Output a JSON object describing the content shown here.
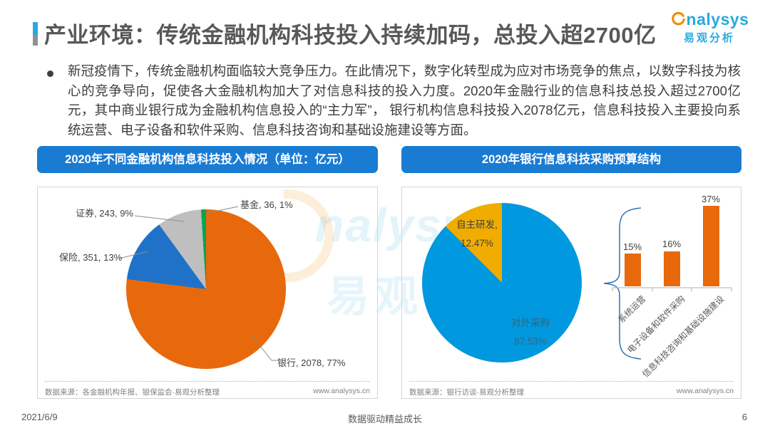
{
  "header": {
    "title": "产业环境：传统金融机构科技投入持续加码，总投入超2700亿",
    "logo_brand": "nalysys",
    "logo_subtitle": "易观分析"
  },
  "summary_bullet": "新冠疫情下，传统金融机构面临较大竞争压力。在此情况下，数字化转型成为应对市场竞争的焦点，以数字科技为核心的竞争导向，促使各大金融机构加大了对信息科技的投入力度。2020年金融行业的信息科技总投入超过2700亿元，其中商业银行成为金融机构信息投入的“主力军”， 银行机构信息科技投入2078亿元，信息科技投入主要投向系统运营、电子设备和软件采购、信息科技咨询和基础设施建设等方面。",
  "chart_data": [
    {
      "type": "pie",
      "title": "2020年不同金融机构信息科技投入情况（单位：亿元）",
      "slices": [
        {
          "label": "银行",
          "value": 2078,
          "pct": 77,
          "color": "#E8690B",
          "display": "银行, 2078, 77%"
        },
        {
          "label": "保险",
          "value": 351,
          "pct": 13,
          "color": "#1F72C8",
          "display": "保险, 351, 13%"
        },
        {
          "label": "证券",
          "value": 243,
          "pct": 9,
          "color": "#BFBFBF",
          "display": "证券, 243, 9%"
        },
        {
          "label": "基金",
          "value": 36,
          "pct": 1,
          "color": "#00A651",
          "display": "基金, 36, 1%"
        }
      ],
      "source": "数据来源：各金融机构年报、银保监会·易观分析整理",
      "website": "www.analysys.cn"
    },
    {
      "type": "pie",
      "title": "2020年银行信息科技采购预算结构",
      "slices": [
        {
          "label": "对外采购",
          "pct": 87.53,
          "color": "#0098DF",
          "display_label": "对外采购",
          "display_pct": "87.53%"
        },
        {
          "label": "自主研发",
          "pct": 12.47,
          "color": "#F0AD00",
          "display_label": "自主研发,",
          "display_pct": "12.47%"
        }
      ],
      "source": "数据来源：银行访谈·易观分析整理",
      "website": "www.analysys.cn"
    },
    {
      "type": "bar",
      "categories": [
        "系统运营",
        "电子设备和软件采购",
        "信息科技咨询和基础设施建设"
      ],
      "values": [
        15,
        16,
        37
      ],
      "value_labels": [
        "15%",
        "16%",
        "37%"
      ],
      "color": "#E8690B",
      "ylim": [
        0,
        40
      ]
    }
  ],
  "watermark": {
    "brand": "nalysys",
    "text": "易观"
  },
  "footer": {
    "date": "2021/6/9",
    "slogan": "数据驱动精益成长",
    "page": "6"
  }
}
